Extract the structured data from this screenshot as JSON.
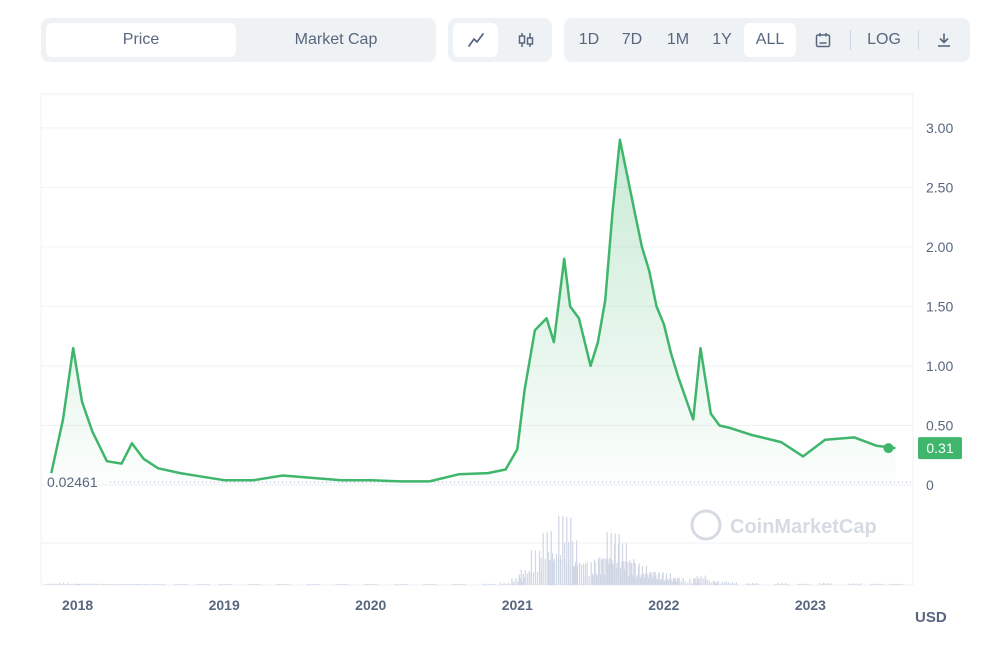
{
  "toolbar": {
    "price_label": "Price",
    "market_cap_label": "Market Cap",
    "line_icon": "line-chart-icon",
    "candle_icon": "candlestick-icon",
    "ranges": [
      "1D",
      "7D",
      "1M",
      "1Y",
      "ALL"
    ],
    "active_range": "ALL",
    "calendar_icon": "calendar-icon",
    "log_label": "LOG",
    "download_icon": "download-icon"
  },
  "watermark": "CoinMarketCap",
  "colors": {
    "line": "#3fb66b",
    "down": "#ea3943",
    "badge": "#3fb66b",
    "volume": "#cfd6e4"
  },
  "chart_data": {
    "type": "area",
    "x": [
      2017.82,
      2017.9,
      2017.97,
      2018.03,
      2018.1,
      2018.2,
      2018.3,
      2018.37,
      2018.45,
      2018.55,
      2018.7,
      2018.85,
      2019.0,
      2019.2,
      2019.4,
      2019.6,
      2019.8,
      2020.0,
      2020.2,
      2020.4,
      2020.6,
      2020.8,
      2020.92,
      2021.0,
      2021.05,
      2021.12,
      2021.2,
      2021.25,
      2021.32,
      2021.36,
      2021.42,
      2021.5,
      2021.55,
      2021.6,
      2021.65,
      2021.7,
      2021.75,
      2021.8,
      2021.85,
      2021.9,
      2021.95,
      2022.0,
      2022.05,
      2022.1,
      2022.2,
      2022.25,
      2022.32,
      2022.38,
      2022.45,
      2022.6,
      2022.8,
      2022.95,
      2023.1,
      2023.3,
      2023.45,
      2023.58
    ],
    "y": [
      0.1,
      0.55,
      1.15,
      0.7,
      0.45,
      0.2,
      0.18,
      0.35,
      0.22,
      0.14,
      0.1,
      0.07,
      0.04,
      0.04,
      0.08,
      0.06,
      0.04,
      0.04,
      0.03,
      0.03,
      0.09,
      0.1,
      0.13,
      0.3,
      0.8,
      1.3,
      1.4,
      1.2,
      1.9,
      1.5,
      1.4,
      1.0,
      1.2,
      1.55,
      2.3,
      2.9,
      2.6,
      2.3,
      2.0,
      1.8,
      1.5,
      1.35,
      1.1,
      0.9,
      0.55,
      1.15,
      0.6,
      0.5,
      0.48,
      0.42,
      0.36,
      0.24,
      0.38,
      0.4,
      0.33,
      0.31
    ],
    "current_value": "0.31",
    "baseline_value": "0.02461",
    "ylim": [
      0,
      3.2
    ],
    "yticks": [
      "3.00",
      "2.50",
      "2.00",
      "1.50",
      "1.00",
      "0.50",
      "0"
    ],
    "ytick_values": [
      3.0,
      2.5,
      2.0,
      1.5,
      1.0,
      0.5,
      0
    ],
    "xticks": [
      "2018",
      "2019",
      "2020",
      "2021",
      "2022",
      "2023"
    ],
    "xtick_values": [
      2018,
      2019,
      2020,
      2021,
      2022,
      2023
    ],
    "xlim": [
      2017.75,
      2023.7
    ],
    "unit_label": "USD",
    "grid": true,
    "volume": [
      0.02,
      0.03,
      0.02,
      0.02,
      0.02,
      0.01,
      0.01,
      0.01,
      0.01,
      0.01,
      0.01,
      0.01,
      0.01,
      0.01,
      0.01,
      0.01,
      0.01,
      0.01,
      0.01,
      0.01,
      0.01,
      0.02,
      0.03,
      0.1,
      0.25,
      0.45,
      0.75,
      0.55,
      0.9,
      0.6,
      0.4,
      0.3,
      0.35,
      0.5,
      0.7,
      0.55,
      0.45,
      0.3,
      0.25,
      0.22,
      0.18,
      0.15,
      0.12,
      0.1,
      0.08,
      0.15,
      0.06,
      0.05,
      0.04,
      0.03,
      0.03,
      0.02,
      0.03,
      0.02,
      0.02,
      0.02
    ]
  }
}
